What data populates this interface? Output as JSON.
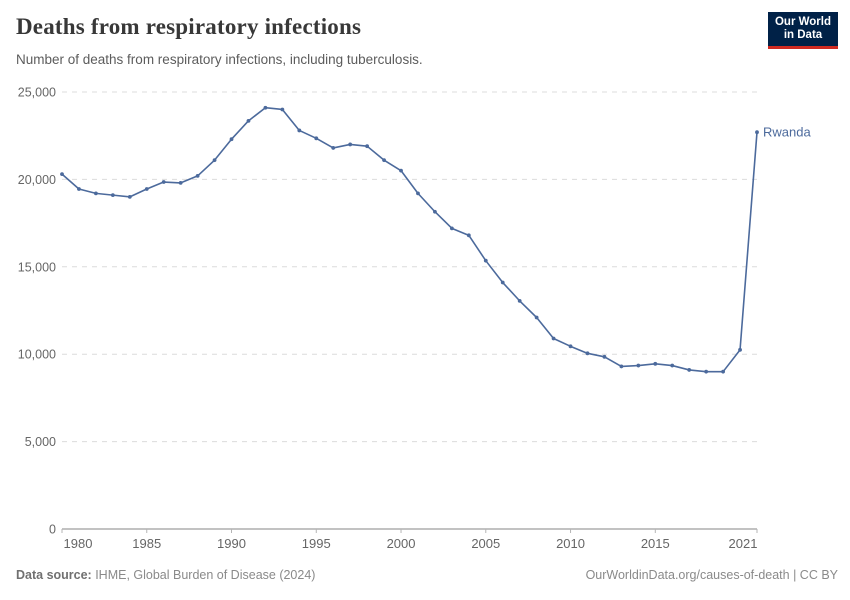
{
  "header": {
    "title": "Deaths from respiratory infections",
    "subtitle": "Number of deaths from respiratory infections, including tuberculosis.",
    "logo_line1": "Our World",
    "logo_line2": "in Data",
    "logo_bg_color": "#002147",
    "logo_accent_color": "#d02a21"
  },
  "footer": {
    "datasource_label": "Data source:",
    "datasource_text": " IHME, Global Burden of Disease (2024)",
    "credit_text": "OurWorldinData.org/causes-of-death | CC BY"
  },
  "chart_data": {
    "type": "line",
    "title": "Deaths from respiratory infections",
    "subtitle": "Number of deaths from respiratory infections, including tuberculosis.",
    "xlabel": "",
    "ylabel": "",
    "x": [
      1980,
      1981,
      1982,
      1983,
      1984,
      1985,
      1986,
      1987,
      1988,
      1989,
      1990,
      1991,
      1992,
      1993,
      1994,
      1995,
      1996,
      1997,
      1998,
      1999,
      2000,
      2001,
      2002,
      2003,
      2004,
      2005,
      2006,
      2007,
      2008,
      2009,
      2010,
      2011,
      2012,
      2013,
      2014,
      2015,
      2016,
      2017,
      2018,
      2019,
      2020,
      2021
    ],
    "series": [
      {
        "name": "Rwanda",
        "color": "#4c6a9c",
        "values": [
          20300,
          19450,
          19200,
          19100,
          19000,
          19450,
          19850,
          19800,
          20200,
          21100,
          22300,
          23350,
          24100,
          24000,
          22800,
          22350,
          21800,
          22000,
          21900,
          21100,
          20500,
          19200,
          18150,
          17200,
          16800,
          15350,
          14100,
          13050,
          12100,
          10900,
          10450,
          10050,
          9850,
          9300,
          9350,
          9450,
          9350,
          9100,
          9000,
          9000,
          10250,
          22700
        ]
      }
    ],
    "ylim": [
      0,
      25000
    ],
    "yticks": [
      0,
      5000,
      10000,
      15000,
      20000,
      25000
    ],
    "xticks": [
      1980,
      1985,
      1990,
      1995,
      2000,
      2005,
      2010,
      2015,
      2021
    ],
    "grid": "horizontal-dashed",
    "legend": "end-of-line-label",
    "marker": "point",
    "axis_color": "#9e9e9e",
    "grid_color": "#dcdcdc",
    "tick_label_color": "#666666"
  }
}
